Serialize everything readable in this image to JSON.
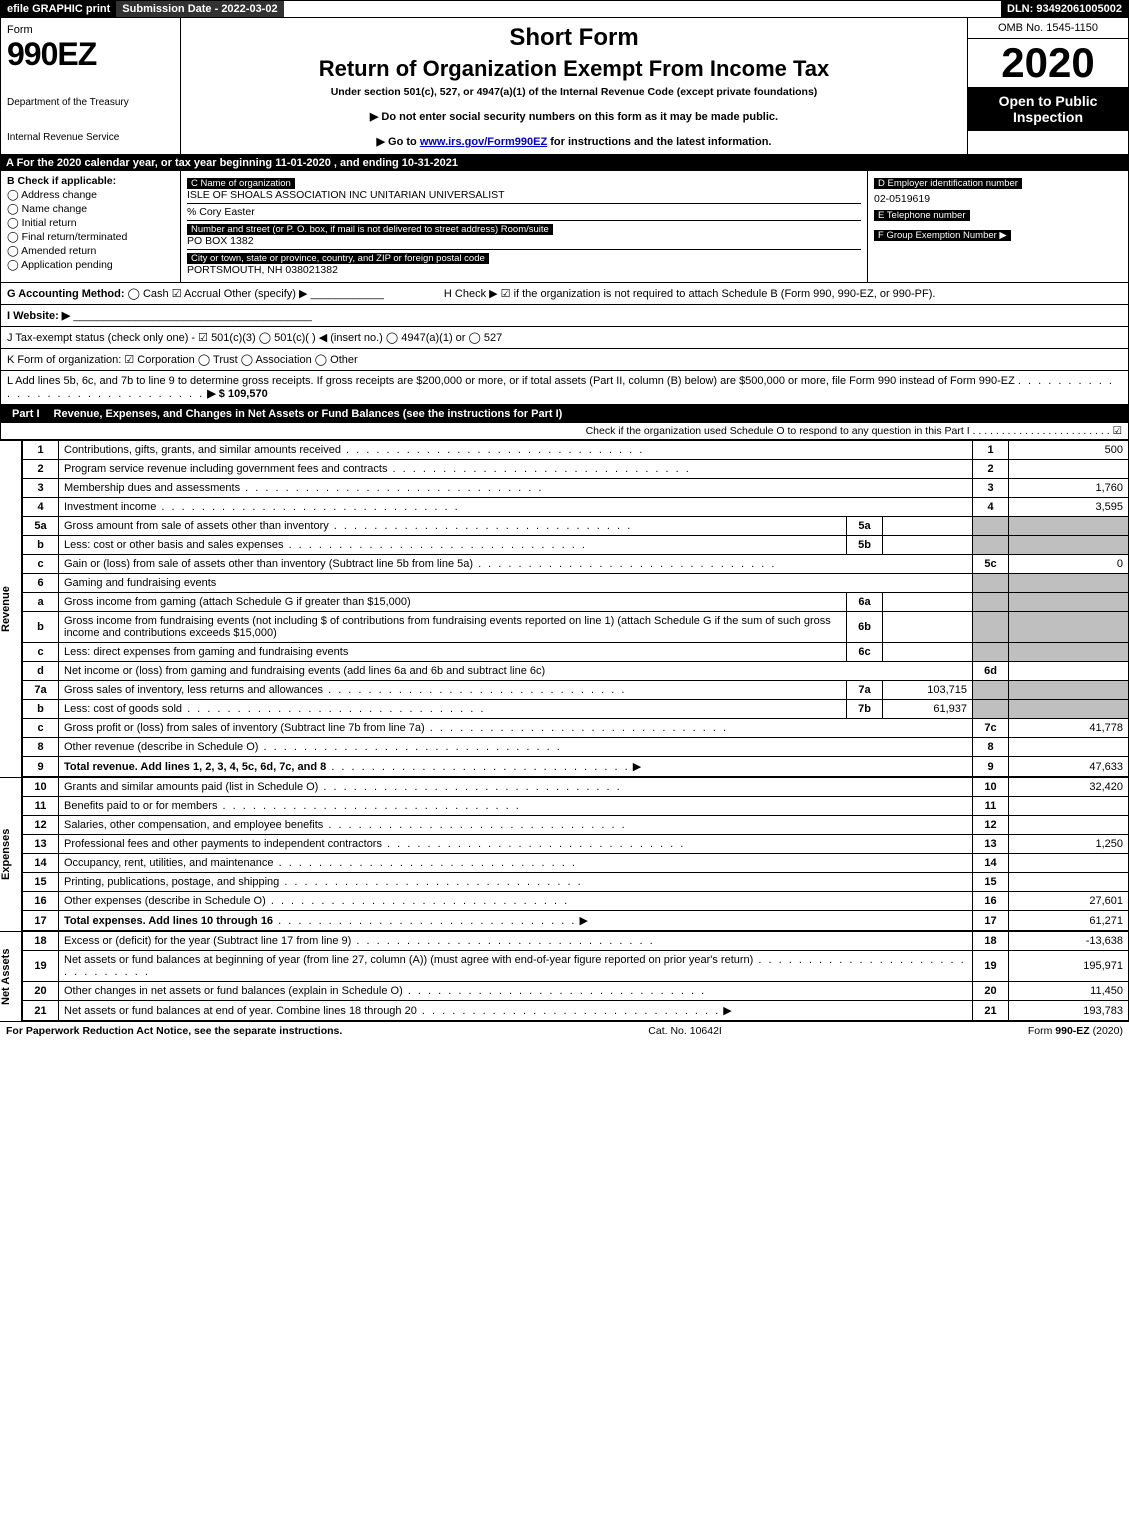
{
  "topbar": {
    "efile": "efile GRAPHIC print",
    "submission": "Submission Date - 2022-03-02",
    "dln": "DLN: 93492061005002"
  },
  "header": {
    "form_word": "Form",
    "form_number": "990EZ",
    "dept1": "Department of the Treasury",
    "dept2": "Internal Revenue Service",
    "short": "Short Form",
    "title": "Return of Organization Exempt From Income Tax",
    "subtitle": "Under section 501(c), 527, or 4947(a)(1) of the Internal Revenue Code (except private foundations)",
    "bullet1": "▶ Do not enter social security numbers on this form as it may be made public.",
    "bullet2_pre": "▶ Go to ",
    "bullet2_link": "www.irs.gov/Form990EZ",
    "bullet2_post": " for instructions and the latest information.",
    "omb": "OMB No. 1545-1150",
    "year": "2020",
    "open": "Open to Public Inspection"
  },
  "lineA": "A For the 2020 calendar year, or tax year beginning 11-01-2020 , and ending 10-31-2021",
  "boxB": {
    "label": "B  Check if applicable:",
    "opts": [
      "Address change",
      "Name change",
      "Initial return",
      "Final return/terminated",
      "Amended return",
      "Application pending"
    ]
  },
  "boxC": {
    "name_hdr": "C Name of organization",
    "name": "ISLE OF SHOALS ASSOCIATION INC UNITARIAN UNIVERSALIST",
    "care": "% Cory Easter",
    "addr_hdr": "Number and street (or P. O. box, if mail is not delivered to street address)      Room/suite",
    "addr": "PO BOX 1382",
    "city_hdr": "City or town, state or province, country, and ZIP or foreign postal code",
    "city": "PORTSMOUTH, NH  038021382"
  },
  "boxD": {
    "ein_hdr": "D Employer identification number",
    "ein": "02-0519619",
    "tel_hdr": "E Telephone number",
    "tel": "",
    "grp_hdr": "F Group Exemption Number   ▶",
    "grp": ""
  },
  "lineG": {
    "label": "G Accounting Method:",
    "cash": "Cash",
    "accrual": "Accrual",
    "other": "Other (specify) ▶",
    "h_label": "H  Check ▶ ☑ if the organization is not required to attach Schedule B (Form 990, 990-EZ, or 990-PF)."
  },
  "lineI": "I Website: ▶",
  "lineJ": "J Tax-exempt status (check only one) - ☑ 501(c)(3)  ◯ 501(c)(  ) ◀ (insert no.)  ◯ 4947(a)(1) or  ◯ 527",
  "lineK": "K Form of organization:  ☑ Corporation  ◯ Trust  ◯ Association  ◯ Other",
  "lineL": {
    "text": "L Add lines 5b, 6c, and 7b to line 9 to determine gross receipts. If gross receipts are $200,000 or more, or if total assets (Part II, column (B) below) are $500,000 or more, file Form 990 instead of Form 990-EZ",
    "amt": "▶ $ 109,570"
  },
  "part1": {
    "label": "Part I",
    "title": "Revenue, Expenses, and Changes in Net Assets or Fund Balances (see the instructions for Part I)",
    "schedO": "Check if the organization used Schedule O to respond to any question in this Part I . . . . . . . . . . . . . . . . . . . . . . . . ☑"
  },
  "sections": {
    "revenue": "Revenue",
    "expenses": "Expenses",
    "netassets": "Net Assets"
  },
  "rows": {
    "r1": {
      "n": "1",
      "d": "Contributions, gifts, grants, and similar amounts received",
      "ln": "1",
      "amt": "500"
    },
    "r2": {
      "n": "2",
      "d": "Program service revenue including government fees and contracts",
      "ln": "2",
      "amt": ""
    },
    "r3": {
      "n": "3",
      "d": "Membership dues and assessments",
      "ln": "3",
      "amt": "1,760"
    },
    "r4": {
      "n": "4",
      "d": "Investment income",
      "ln": "4",
      "amt": "3,595"
    },
    "r5a": {
      "n": "5a",
      "d": "Gross amount from sale of assets other than inventory",
      "sub": "5a",
      "subval": ""
    },
    "r5b": {
      "n": "b",
      "d": "Less: cost or other basis and sales expenses",
      "sub": "5b",
      "subval": ""
    },
    "r5c": {
      "n": "c",
      "d": "Gain or (loss) from sale of assets other than inventory (Subtract line 5b from line 5a)",
      "ln": "5c",
      "amt": "0"
    },
    "r6": {
      "n": "6",
      "d": "Gaming and fundraising events"
    },
    "r6a": {
      "n": "a",
      "d": "Gross income from gaming (attach Schedule G if greater than $15,000)",
      "sub": "6a",
      "subval": ""
    },
    "r6b": {
      "n": "b",
      "d": "Gross income from fundraising events (not including $                           of contributions from fundraising events reported on line 1) (attach Schedule G if the sum of such gross income and contributions exceeds $15,000)",
      "sub": "6b",
      "subval": ""
    },
    "r6c": {
      "n": "c",
      "d": "Less: direct expenses from gaming and fundraising events",
      "sub": "6c",
      "subval": ""
    },
    "r6d": {
      "n": "d",
      "d": "Net income or (loss) from gaming and fundraising events (add lines 6a and 6b and subtract line 6c)",
      "ln": "6d",
      "amt": ""
    },
    "r7a": {
      "n": "7a",
      "d": "Gross sales of inventory, less returns and allowances",
      "sub": "7a",
      "subval": "103,715"
    },
    "r7b": {
      "n": "b",
      "d": "Less: cost of goods sold",
      "sub": "7b",
      "subval": "61,937"
    },
    "r7c": {
      "n": "c",
      "d": "Gross profit or (loss) from sales of inventory (Subtract line 7b from line 7a)",
      "ln": "7c",
      "amt": "41,778"
    },
    "r8": {
      "n": "8",
      "d": "Other revenue (describe in Schedule O)",
      "ln": "8",
      "amt": ""
    },
    "r9": {
      "n": "9",
      "d": "Total revenue. Add lines 1, 2, 3, 4, 5c, 6d, 7c, and 8",
      "ln": "9",
      "amt": "47,633",
      "bold": true,
      "arrow": true
    },
    "r10": {
      "n": "10",
      "d": "Grants and similar amounts paid (list in Schedule O)",
      "ln": "10",
      "amt": "32,420"
    },
    "r11": {
      "n": "11",
      "d": "Benefits paid to or for members",
      "ln": "11",
      "amt": ""
    },
    "r12": {
      "n": "12",
      "d": "Salaries, other compensation, and employee benefits",
      "ln": "12",
      "amt": ""
    },
    "r13": {
      "n": "13",
      "d": "Professional fees and other payments to independent contractors",
      "ln": "13",
      "amt": "1,250"
    },
    "r14": {
      "n": "14",
      "d": "Occupancy, rent, utilities, and maintenance",
      "ln": "14",
      "amt": ""
    },
    "r15": {
      "n": "15",
      "d": "Printing, publications, postage, and shipping",
      "ln": "15",
      "amt": ""
    },
    "r16": {
      "n": "16",
      "d": "Other expenses (describe in Schedule O)",
      "ln": "16",
      "amt": "27,601"
    },
    "r17": {
      "n": "17",
      "d": "Total expenses. Add lines 10 through 16",
      "ln": "17",
      "amt": "61,271",
      "bold": true,
      "arrow": true
    },
    "r18": {
      "n": "18",
      "d": "Excess or (deficit) for the year (Subtract line 17 from line 9)",
      "ln": "18",
      "amt": "-13,638"
    },
    "r19": {
      "n": "19",
      "d": "Net assets or fund balances at beginning of year (from line 27, column (A)) (must agree with end-of-year figure reported on prior year's return)",
      "ln": "19",
      "amt": "195,971"
    },
    "r20": {
      "n": "20",
      "d": "Other changes in net assets or fund balances (explain in Schedule O)",
      "ln": "20",
      "amt": "11,450"
    },
    "r21": {
      "n": "21",
      "d": "Net assets or fund balances at end of year. Combine lines 18 through 20",
      "ln": "21",
      "amt": "193,783",
      "arrow": true
    }
  },
  "footer": {
    "left": "For Paperwork Reduction Act Notice, see the separate instructions.",
    "mid": "Cat. No. 10642I",
    "right": "Form 990-EZ (2020)"
  },
  "colors": {
    "black": "#000000",
    "gray_cell": "#bfbfbf",
    "link": "#0000cc"
  },
  "fonts": {
    "base_pt": 11,
    "title_pt": 22,
    "year_pt": 42
  }
}
